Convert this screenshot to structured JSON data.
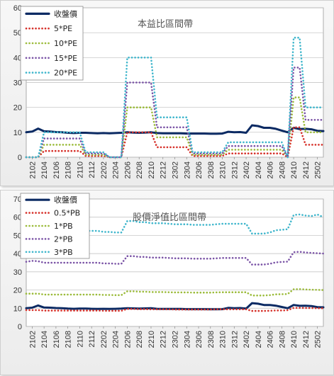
{
  "chart_data": [
    {
      "type": "line",
      "title": "本益比區間帶",
      "x": [
        "2101",
        "2102",
        "2103",
        "2104",
        "2105",
        "2106",
        "2107",
        "2108",
        "2109",
        "2110",
        "2111",
        "2112",
        "2201",
        "2202",
        "2203",
        "2204",
        "2205",
        "2206",
        "2207",
        "2208",
        "2209",
        "2210",
        "2211",
        "2212",
        "2301",
        "2302",
        "2303",
        "2304",
        "2305",
        "2306",
        "2307",
        "2308",
        "2309",
        "2310",
        "2311",
        "2312",
        "2401",
        "2402",
        "2403",
        "2404",
        "2405",
        "2406",
        "2407",
        "2408",
        "2409",
        "2410",
        "2411",
        "2412",
        "2501",
        "2502",
        "2503"
      ],
      "xticks": [
        "2102",
        "2104",
        "2106",
        "2108",
        "2110",
        "2112",
        "2202",
        "2204",
        "2206",
        "2208",
        "2210",
        "2212",
        "2302",
        "2304",
        "2306",
        "2308",
        "2310",
        "2312",
        "2402",
        "2404",
        "2406",
        "2408",
        "2410",
        "2412",
        "2502"
      ],
      "ylim": [
        0,
        60
      ],
      "yticks": [
        0,
        10,
        20,
        30,
        40,
        50,
        60
      ],
      "grid": true,
      "legend_position": "top-left",
      "series": [
        {
          "name": "收盤價",
          "color": "#0b2a63",
          "style": "solid",
          "values": [
            10,
            10.3,
            11.5,
            10.4,
            10.3,
            10.1,
            10,
            9.8,
            9.7,
            9.8,
            9.8,
            9.7,
            9.6,
            9.7,
            9.6,
            9.7,
            9.8,
            10,
            9.9,
            9.8,
            9.9,
            10,
            9.7,
            9.6,
            9.6,
            9.6,
            9.6,
            9.5,
            9.5,
            9.5,
            9.5,
            9.4,
            9.4,
            9.5,
            10.2,
            10,
            10.1,
            9.8,
            12.8,
            12.5,
            11.8,
            11.8,
            11.4,
            10.7,
            10,
            11.8,
            11.3,
            11.4,
            11.2,
            10.6,
            10.5
          ]
        },
        {
          "name": "5*PE",
          "color": "#d6312a",
          "style": "dotted",
          "values": [
            0,
            0,
            0,
            2.5,
            2.5,
            2.5,
            2.5,
            2.5,
            2.5,
            2.5,
            0.5,
            0.5,
            0.5,
            0.5,
            0,
            0,
            0,
            10,
            10,
            10,
            10,
            10,
            4,
            4,
            4,
            4,
            4,
            4,
            0.5,
            0.5,
            0.5,
            0.5,
            0.5,
            0.5,
            1.5,
            1.5,
            1.5,
            1.5,
            1.5,
            1.5,
            1.5,
            1.5,
            1.5,
            1.5,
            0,
            12,
            12,
            5,
            5,
            5,
            5
          ]
        },
        {
          "name": "10*PE",
          "color": "#9bbb3a",
          "style": "dotted",
          "values": [
            0,
            0,
            0,
            5,
            5,
            5,
            5,
            5,
            5,
            5,
            1,
            1,
            1,
            1,
            0,
            0,
            0,
            20,
            20,
            20,
            20,
            20,
            8,
            8,
            8,
            8,
            8,
            8,
            1,
            1,
            1,
            1,
            1,
            1,
            3,
            3,
            3,
            3,
            3,
            3,
            3,
            3,
            3,
            3,
            0,
            24,
            24,
            10,
            10,
            10,
            10
          ]
        },
        {
          "name": "15*PE",
          "color": "#7a53a6",
          "style": "dotted",
          "values": [
            0,
            0,
            0,
            7.5,
            7.5,
            7.5,
            7.5,
            7.5,
            7.5,
            7.5,
            1.5,
            1.5,
            1.5,
            1.5,
            0,
            0,
            0,
            30,
            30,
            30,
            30,
            30,
            12,
            12,
            12,
            12,
            12,
            12,
            1.5,
            1.5,
            1.5,
            1.5,
            1.5,
            1.5,
            4.5,
            4.5,
            4.5,
            4.5,
            4.5,
            4.5,
            4.5,
            4.5,
            4.5,
            4.5,
            0,
            36,
            36,
            15,
            15,
            15,
            15
          ]
        },
        {
          "name": "20*PE",
          "color": "#3fb6cc",
          "style": "dotted",
          "values": [
            0,
            0,
            0,
            10,
            10,
            10,
            10,
            10,
            10,
            10,
            2,
            2,
            2,
            2,
            0,
            0,
            0,
            40,
            40,
            40,
            40,
            40,
            16,
            16,
            16,
            16,
            16,
            16,
            2,
            2,
            2,
            2,
            2,
            2,
            6,
            6,
            6,
            6,
            6,
            6,
            6,
            6,
            6,
            6,
            0,
            48,
            48,
            20,
            20,
            20,
            20
          ]
        }
      ]
    },
    {
      "type": "line",
      "title": "股價淨值比區間帶",
      "x": [
        "2101",
        "2102",
        "2103",
        "2104",
        "2105",
        "2106",
        "2107",
        "2108",
        "2109",
        "2110",
        "2111",
        "2112",
        "2201",
        "2202",
        "2203",
        "2204",
        "2205",
        "2206",
        "2207",
        "2208",
        "2209",
        "2210",
        "2211",
        "2212",
        "2301",
        "2302",
        "2303",
        "2304",
        "2305",
        "2306",
        "2307",
        "2308",
        "2309",
        "2310",
        "2311",
        "2312",
        "2401",
        "2402",
        "2403",
        "2404",
        "2405",
        "2406",
        "2407",
        "2408",
        "2409",
        "2410",
        "2411",
        "2412",
        "2501",
        "2502",
        "2503"
      ],
      "xticks": [
        "2102",
        "2104",
        "2106",
        "2108",
        "2110",
        "2112",
        "2202",
        "2204",
        "2206",
        "2208",
        "2210",
        "2212",
        "2302",
        "2304",
        "2306",
        "2308",
        "2310",
        "2312",
        "2402",
        "2404",
        "2406",
        "2408",
        "2410",
        "2412",
        "2502"
      ],
      "ylim": [
        0,
        70
      ],
      "yticks": [
        0,
        10,
        20,
        30,
        40,
        50,
        60,
        70
      ],
      "grid": true,
      "legend_position": "top-left",
      "series": [
        {
          "name": "收盤價",
          "color": "#0b2a63",
          "style": "solid",
          "values": [
            10,
            10.3,
            11.5,
            10.4,
            10.3,
            10.1,
            10,
            9.8,
            9.7,
            9.8,
            9.8,
            9.7,
            9.6,
            9.7,
            9.6,
            9.7,
            9.8,
            10,
            9.9,
            9.8,
            9.9,
            10,
            9.7,
            9.6,
            9.6,
            9.6,
            9.6,
            9.5,
            9.5,
            9.5,
            9.5,
            9.4,
            9.4,
            9.5,
            10.2,
            10,
            10.1,
            9.8,
            12.8,
            12.5,
            11.8,
            11.8,
            11.4,
            10.7,
            10,
            11.8,
            11.3,
            11.4,
            11.2,
            10.6,
            10.5
          ]
        },
        {
          "name": "0.5*PB",
          "color": "#d6312a",
          "style": "dotted",
          "values": [
            9,
            9,
            9,
            8.7,
            8.7,
            8.7,
            8.7,
            8.7,
            8.7,
            8.7,
            8.7,
            8.7,
            8.7,
            8.6,
            8.6,
            8.6,
            8.6,
            9.6,
            9.6,
            9.5,
            9.5,
            9.4,
            9.4,
            9.4,
            9.4,
            9.3,
            9.3,
            9.3,
            9.3,
            9.3,
            9.3,
            9.3,
            9.4,
            9.4,
            9.4,
            9.4,
            9.4,
            9.4,
            8.5,
            8.5,
            8.5,
            8.6,
            8.8,
            8.8,
            8.9,
            10.2,
            10.2,
            10.1,
            10.1,
            10,
            10
          ]
        },
        {
          "name": "1*PB",
          "color": "#9bbb3a",
          "style": "dotted",
          "values": [
            18,
            18,
            18,
            17.5,
            17.5,
            17.5,
            17.5,
            17.5,
            17.5,
            17.5,
            17.5,
            17.5,
            17.5,
            17.3,
            17.3,
            17.2,
            17.2,
            19.3,
            19.3,
            19.1,
            19.1,
            18.9,
            18.9,
            18.9,
            18.8,
            18.7,
            18.7,
            18.7,
            18.6,
            18.6,
            18.6,
            18.6,
            18.7,
            18.8,
            18.8,
            18.8,
            18.8,
            18.8,
            17,
            17,
            17,
            17.2,
            17.6,
            17.7,
            17.8,
            20.4,
            20.5,
            20.3,
            20.2,
            20.1,
            20
          ]
        },
        {
          "name": "2*PB",
          "color": "#7a53a6",
          "style": "dotted",
          "values": [
            35.5,
            36,
            35.8,
            35,
            35,
            35,
            35,
            35,
            35,
            35,
            35,
            35,
            35,
            34.6,
            34.6,
            34.4,
            34.4,
            38.6,
            38.6,
            38.2,
            38.2,
            37.8,
            37.8,
            37.8,
            37.6,
            37.4,
            37.4,
            37.4,
            37.2,
            37.2,
            37.2,
            37.2,
            37.4,
            37.6,
            37.6,
            37.6,
            37.6,
            37.6,
            34,
            34,
            34,
            34.4,
            35.2,
            35.4,
            35.6,
            40.8,
            41,
            40.6,
            40.4,
            40.2,
            40
          ]
        },
        {
          "name": "3*PB",
          "color": "#3fb6cc",
          "style": "dotted",
          "values": [
            53,
            54,
            53.5,
            52.5,
            52.5,
            52.5,
            52.5,
            52.5,
            52.5,
            52.5,
            52.5,
            52.5,
            52.5,
            51.9,
            51.9,
            51.6,
            51.6,
            57.9,
            57.9,
            57.3,
            57.3,
            56.7,
            56.7,
            56.7,
            56.4,
            56.1,
            56.1,
            56.1,
            55.8,
            55.8,
            55.8,
            55.8,
            56.1,
            56.4,
            56.4,
            56.4,
            56.4,
            56.4,
            51,
            51,
            51,
            51.6,
            52.8,
            53.1,
            53.4,
            61.2,
            61.5,
            60.9,
            60.6,
            61.5,
            60
          ]
        }
      ]
    }
  ]
}
